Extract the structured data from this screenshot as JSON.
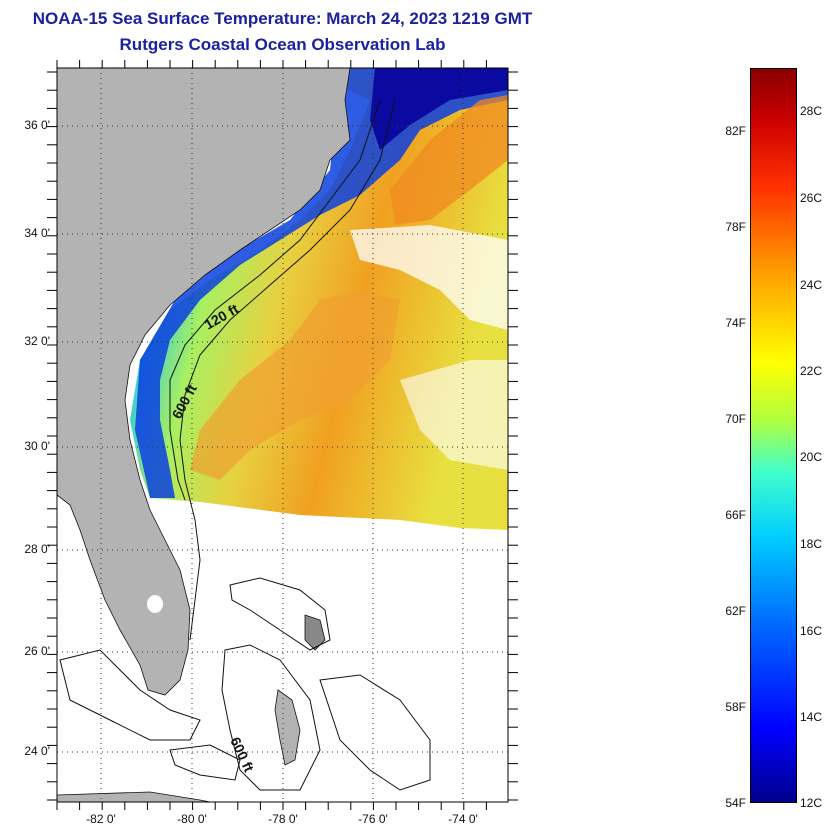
{
  "title": {
    "line1": "NOAA-15 Sea Surface Temperature:  March 24, 2023 1219 GMT",
    "line2": "Rutgers Coastal Ocean Observation Lab"
  },
  "map": {
    "lat_labels": [
      "36 0'",
      "34 0'",
      "32 0'",
      "30 0'",
      "28 0'",
      "26 0'",
      "24 0'"
    ],
    "lon_labels": [
      "-82 0'",
      "-80 0'",
      "-78 0'",
      "-76 0'",
      "-74 0'"
    ],
    "isobath_labels": [
      "120 ft",
      "600 ft",
      "600 ft"
    ],
    "land_color": "#b3b3b3",
    "grid": "dotted"
  },
  "colorbar": {
    "fahrenheit_labels": [
      "82F",
      "78F",
      "74F",
      "70F",
      "66F",
      "62F",
      "58F",
      "54F"
    ],
    "celsius_labels": [
      "28C",
      "26C",
      "24C",
      "22C",
      "20C",
      "18C",
      "16C",
      "14C",
      "12C"
    ],
    "min_c": 12,
    "max_c": 29,
    "colors": [
      "#00008b",
      "#0000ff",
      "#0070ff",
      "#00ccff",
      "#40ffcc",
      "#b0ff40",
      "#ffff00",
      "#ffa000",
      "#ff3000",
      "#cc0000",
      "#8b0000"
    ]
  }
}
